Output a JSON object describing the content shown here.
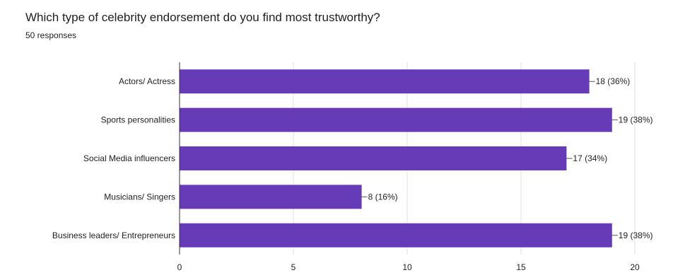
{
  "header": {
    "title": "Which type of celebrity endorsement do you find most trustworthy?",
    "subtitle": "50 responses"
  },
  "colors": {
    "bar": "#673ab7",
    "grid": "#e0e0e0",
    "axis": "#333333",
    "text": "#222222"
  },
  "chart_data": {
    "type": "bar",
    "orientation": "horizontal",
    "categories": [
      "Actors/ Actress",
      "Sports personalities",
      "Social Media influencers",
      "Musicians/ Singers",
      "Business leaders/ Entrepreneurs"
    ],
    "values": [
      18,
      19,
      17,
      8,
      19
    ],
    "data_labels": [
      "18 (36%)",
      "19 (38%)",
      "17 (34%)",
      "8 (16%)",
      "19 (38%)"
    ],
    "x_ticks": [
      0,
      5,
      10,
      15,
      20
    ],
    "xlim": [
      0,
      20
    ],
    "grid": true,
    "legend": "none"
  }
}
